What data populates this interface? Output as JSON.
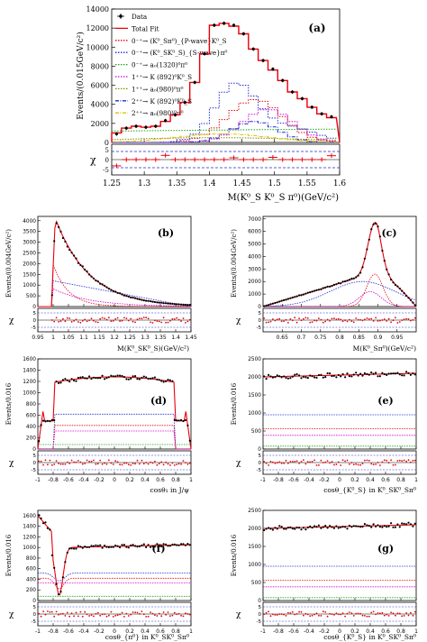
{
  "chart_data": [
    {
      "panel_label": "(a)",
      "type": "line",
      "ylabel": "Events/(0.015GeV/c²)",
      "xlabel": "M(K⁰_S K⁰_S π⁰)(GeV/c²)",
      "pull_label": "χ",
      "xlim": [
        1.25,
        1.6
      ],
      "ylim": [
        0,
        14000
      ],
      "xticks": [
        "1.25",
        "1.3",
        "1.35",
        "1.4",
        "1.45",
        "1.5",
        "1.55",
        "1.6"
      ],
      "yticks": [
        "0",
        "2000",
        "4000",
        "6000",
        "8000",
        "10000",
        "12000",
        "14000"
      ],
      "pull_ticks": [
        "-5",
        "0",
        "5"
      ],
      "legend": [
        {
          "label": "Data",
          "color": "#000000",
          "style": "marker"
        },
        {
          "label": "Total Fit",
          "color": "#e8000b",
          "style": "solid"
        },
        {
          "label": "0⁻⁺→ (K⁰_Sπ⁰)_{P-wave}K⁰_S",
          "color": "#e8000b",
          "style": "dotted"
        },
        {
          "label": "0⁻⁺→ (K⁰_SK⁰_S)_{S-wave}π⁰",
          "color": "#1f2bd6",
          "style": "dotted"
        },
        {
          "label": "0⁻⁺→ a₀(1320)⁰π⁰",
          "color": "#1aa51a",
          "style": "dotted"
        },
        {
          "label": "1⁺⁺→ K (892)⁰K⁰_S",
          "color": "#d400d4",
          "style": "dotted"
        },
        {
          "label": "1⁺⁺→ a₀(980)⁰π⁰",
          "color": "#8a8a00",
          "style": "dotted"
        },
        {
          "label": "2⁺⁺→ K (892)⁰K⁰_S",
          "color": "#1f2bd6",
          "style": "dashdot"
        },
        {
          "label": "2⁺⁺→ a₀(980)⁰π⁰",
          "color": "#d8c400",
          "style": "dashdot"
        }
      ],
      "x": [
        1.2575,
        1.2725,
        1.2875,
        1.3025,
        1.3175,
        1.3325,
        1.3475,
        1.3625,
        1.3775,
        1.3925,
        1.4075,
        1.4225,
        1.4375,
        1.4525,
        1.4675,
        1.4825,
        1.4975,
        1.5125,
        1.5275,
        1.5425,
        1.5575,
        1.5725,
        1.5875
      ],
      "series": [
        {
          "name": "Data",
          "values": [
            900,
            1500,
            1700,
            1600,
            1700,
            2300,
            2900,
            4200,
            6300,
            9300,
            12300,
            12500,
            12300,
            11400,
            9800,
            8600,
            7700,
            6500,
            5300,
            4600,
            3700,
            3000,
            2700
          ]
        },
        {
          "name": "Total Fit",
          "values": [
            1000,
            1500,
            1700,
            1600,
            1700,
            2200,
            2900,
            4200,
            6300,
            9300,
            12300,
            12500,
            12200,
            11400,
            9800,
            8600,
            7600,
            6500,
            5300,
            4600,
            3700,
            3000,
            2600
          ]
        }
      ]
    },
    {
      "panel_label": "(b)",
      "type": "scatter",
      "ylabel": "Events/(0.004GeV/c²)",
      "xlabel": "M(K⁰_SK⁰_S)(GeV/c²)",
      "pull_label": "χ",
      "xlim": [
        0.95,
        1.45
      ],
      "ylim": [
        0,
        4200
      ],
      "xticks": [
        "0.95",
        "1",
        "1.05",
        "1.1",
        "1.15",
        "1.2",
        "1.25",
        "1.3",
        "1.35",
        "1.4",
        "1.45"
      ],
      "yticks": [
        "0",
        "500",
        "1000",
        "1500",
        "2000",
        "2500",
        "3000",
        "3500",
        "4000"
      ],
      "peak_value": 4000,
      "peak_x": 1.01
    },
    {
      "panel_label": "(c)",
      "type": "scatter",
      "ylabel": "Events/(0.004GeV/c²)",
      "xlabel": "M(K⁰_Sπ⁰)(GeV/c²)",
      "pull_label": "χ",
      "xlim": [
        0.6,
        1.0
      ],
      "ylim": [
        0,
        7200
      ],
      "xticks": [
        "0.65",
        "0.7",
        "0.75",
        "0.8",
        "0.85",
        "0.9",
        "0.95"
      ],
      "yticks": [
        "0",
        "1000",
        "2000",
        "3000",
        "4000",
        "5000",
        "6000",
        "7000"
      ],
      "peak_value": 7100,
      "peak_x": 0.892
    },
    {
      "panel_label": "(d)",
      "type": "scatter",
      "ylabel": "Events/0.016",
      "xlabel": "cosθ₁ in J/ψ",
      "pull_label": "χ",
      "xlim": [
        -1,
        1
      ],
      "ylim": [
        0,
        1600
      ],
      "xticks": [
        "-1",
        "-0.8",
        "-0.6",
        "-0.4",
        "-0.2",
        "0",
        "0.2",
        "0.4",
        "0.6",
        "0.8",
        "1"
      ],
      "yticks": [
        "0",
        "200",
        "400",
        "600",
        "800",
        "1000",
        "1200",
        "1400",
        "1600"
      ],
      "plateau_value": 1280
    },
    {
      "panel_label": "(e)",
      "type": "scatter",
      "ylabel": "Events/0.016",
      "xlabel": "cosθ_{K⁰_S} in K⁰_SK⁰_Sπ⁰",
      "pull_label": "χ",
      "xlim": [
        -1,
        1
      ],
      "ylim": [
        0,
        2500
      ],
      "xticks": [
        "-1",
        "-0.8",
        "-0.6",
        "-0.4",
        "-0.2",
        "0",
        "0.2",
        "0.4",
        "0.6",
        "0.8",
        "1"
      ],
      "yticks": [
        "0",
        "500",
        "1000",
        "1500",
        "2000",
        "2500"
      ],
      "plateau_value": 2050
    },
    {
      "panel_label": "(f)",
      "type": "scatter",
      "ylabel": "Events/0.016",
      "xlabel": "cosθ_{π⁰} in K⁰_SK⁰_Sπ⁰",
      "pull_label": "χ",
      "xlim": [
        -1,
        1
      ],
      "ylim": [
        0,
        1700
      ],
      "xticks": [
        "-1",
        "-0.8",
        "-0.6",
        "-0.4",
        "-0.2",
        "0",
        "0.2",
        "0.4",
        "0.6",
        "0.8",
        "1"
      ],
      "yticks": [
        "0",
        "200",
        "400",
        "600",
        "800",
        "1000",
        "1200",
        "1400",
        "1600"
      ],
      "plateau_value": 1050
    },
    {
      "panel_label": "(g)",
      "type": "scatter",
      "ylabel": "Events/0.016",
      "xlabel": "cosθ_{K⁰_S} in K⁰_SK⁰_Sπ⁰",
      "pull_label": "χ",
      "xlim": [
        -1,
        1
      ],
      "ylim": [
        0,
        2500
      ],
      "xticks": [
        "-1",
        "-0.8",
        "-0.6",
        "-0.4",
        "-0.2",
        "0",
        "0.2",
        "0.4",
        "0.6",
        "0.8",
        "1"
      ],
      "yticks": [
        "0",
        "500",
        "1000",
        "1500",
        "2000",
        "2500"
      ],
      "plateau_value": 2050
    }
  ]
}
